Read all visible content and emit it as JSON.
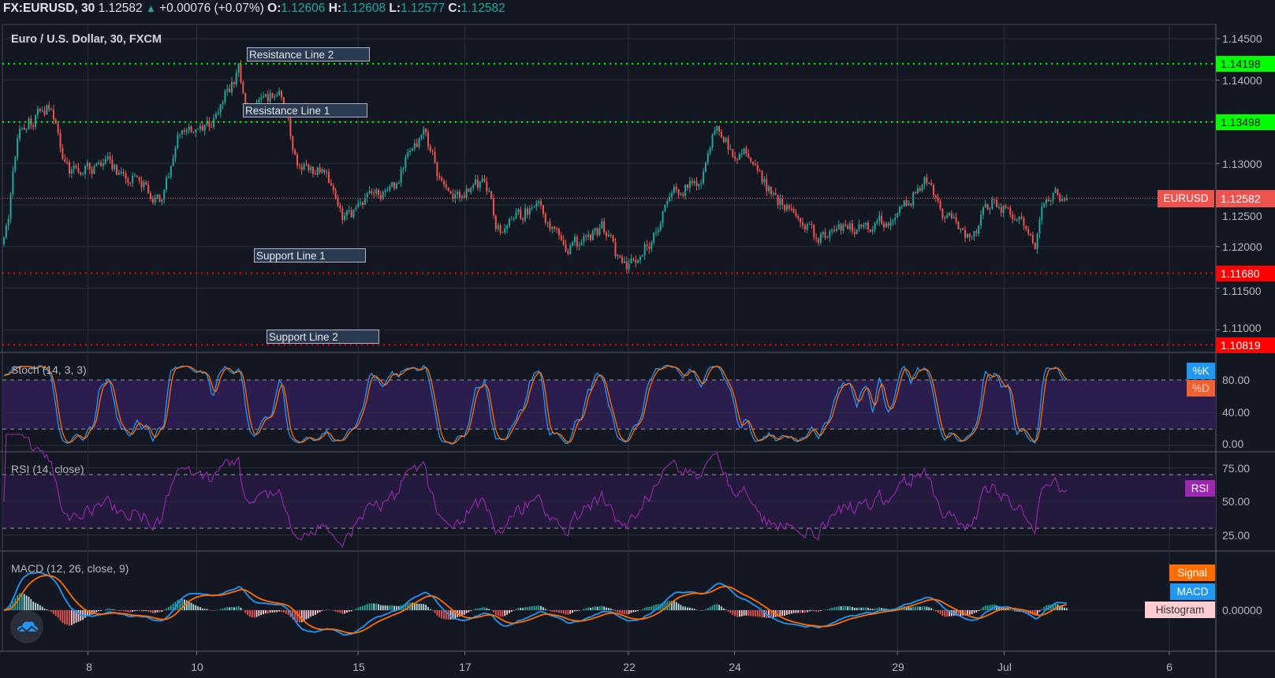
{
  "header": {
    "symbol": "FX:EURUSD, 30",
    "last": "1.12582",
    "change": "+0.00076 (+0.07%)",
    "o_label": "O:",
    "o": "1.12606",
    "h_label": "H:",
    "h": "1.12608",
    "l_label": "L:",
    "l": "1.12577",
    "c_label": "C:",
    "c": "1.12582",
    "up_icon": "triangle-up-icon"
  },
  "main": {
    "title": "Euro / U.S. Dollar, 30, FXCM",
    "price_label": {
      "name": "EURUSD",
      "value": "1.12582",
      "color": "#ef5350"
    },
    "axis_ticks": [
      "1.14500",
      "1.14000",
      "1.13000",
      "1.12500",
      "1.12000",
      "1.11500",
      "1.11000"
    ],
    "levels": [
      {
        "label": "Resistance Line 2",
        "value": "1.14198",
        "price": 1.14198,
        "color": "#00ff00"
      },
      {
        "label": "Resistance Line 1",
        "value": "1.13498",
        "price": 1.13498,
        "color": "#00ff00"
      },
      {
        "label": "Support Line 1",
        "value": "1.11680",
        "price": 1.1168,
        "color": "#ff0000"
      },
      {
        "label": "Support Line 2",
        "value": "1.10819",
        "price": 1.10819,
        "color": "#ff0000"
      }
    ]
  },
  "stoch": {
    "title": "Stoch (14, 3, 3)",
    "k_tag": "%K",
    "d_tag": "%D",
    "ticks": [
      "80.00",
      "40.00",
      "0.00"
    ],
    "k_color": "#2196f3",
    "d_color": "#ff6d00"
  },
  "rsi": {
    "title": "RSI (14, close)",
    "tag": "RSI",
    "ticks": [
      "75.00",
      "50.00",
      "25.00"
    ],
    "color": "#9c27b0"
  },
  "macd": {
    "title": "MACD (12, 26, close, 9)",
    "signal_tag": "Signal",
    "macd_tag": "MACD",
    "hist_tag": "Histogram",
    "ticks": [
      "0.00000"
    ],
    "macd_color": "#2196f3",
    "signal_color": "#ff6d00"
  },
  "time_axis": {
    "labels": [
      "8",
      "10",
      "15",
      "17",
      "22",
      "24",
      "29",
      "Jul",
      "6"
    ]
  },
  "chart_data": {
    "type": "candlestick",
    "title": "Euro / U.S. Dollar, 30, FXCM",
    "x_unit": "trading days from start of visible range",
    "x_ticks": [
      {
        "label": "8",
        "t": 1.55
      },
      {
        "label": "10",
        "t": 3.56
      },
      {
        "label": "15",
        "t": 6.54
      },
      {
        "label": "17",
        "t": 8.51
      },
      {
        "label": "22",
        "t": 11.53
      },
      {
        "label": "24",
        "t": 13.49
      },
      {
        "label": "29",
        "t": 16.5
      },
      {
        "label": "Jul",
        "t": 18.47
      },
      {
        "label": "6",
        "t": 21.52
      }
    ],
    "xlim": [
      0,
      22.38
    ],
    "ylim": [
      1.1065,
      1.1466
    ],
    "price_path": [
      [
        0,
        1.1203
      ],
      [
        0.23,
        1.134
      ],
      [
        0.83,
        1.137
      ],
      [
        1.13,
        1.129
      ],
      [
        1.88,
        1.13
      ],
      [
        2.93,
        1.1255
      ],
      [
        3.16,
        1.134
      ],
      [
        3.68,
        1.1335
      ],
      [
        4.06,
        1.138
      ],
      [
        4.33,
        1.1418
      ],
      [
        4.44,
        1.136
      ],
      [
        5.11,
        1.139
      ],
      [
        5.34,
        1.13
      ],
      [
        5.94,
        1.1285
      ],
      [
        6.24,
        1.1225
      ],
      [
        6.54,
        1.1255
      ],
      [
        7.14,
        1.1265
      ],
      [
        7.44,
        1.131
      ],
      [
        7.74,
        1.134
      ],
      [
        8.12,
        1.126
      ],
      [
        8.5,
        1.1265
      ],
      [
        8.87,
        1.128
      ],
      [
        9.1,
        1.1215
      ],
      [
        9.85,
        1.1255
      ],
      [
        10.3,
        1.1195
      ],
      [
        10.75,
        1.121
      ],
      [
        11.05,
        1.1225
      ],
      [
        11.35,
        1.118
      ],
      [
        11.5,
        1.1175
      ],
      [
        11.95,
        1.121
      ],
      [
        12.26,
        1.1265
      ],
      [
        12.86,
        1.128
      ],
      [
        13.13,
        1.1345
      ],
      [
        13.46,
        1.131
      ],
      [
        13.76,
        1.1315
      ],
      [
        14.06,
        1.127
      ],
      [
        14.96,
        1.121
      ],
      [
        15.71,
        1.1225
      ],
      [
        16.47,
        1.1235
      ],
      [
        16.99,
        1.1285
      ],
      [
        17.22,
        1.1245
      ],
      [
        17.82,
        1.121
      ],
      [
        18.2,
        1.1255
      ],
      [
        18.87,
        1.1225
      ],
      [
        19.02,
        1.1195
      ],
      [
        19.17,
        1.1265
      ],
      [
        19.62,
        1.12582
      ]
    ],
    "up_color": "#26a69a",
    "down_color": "#ef5350"
  }
}
